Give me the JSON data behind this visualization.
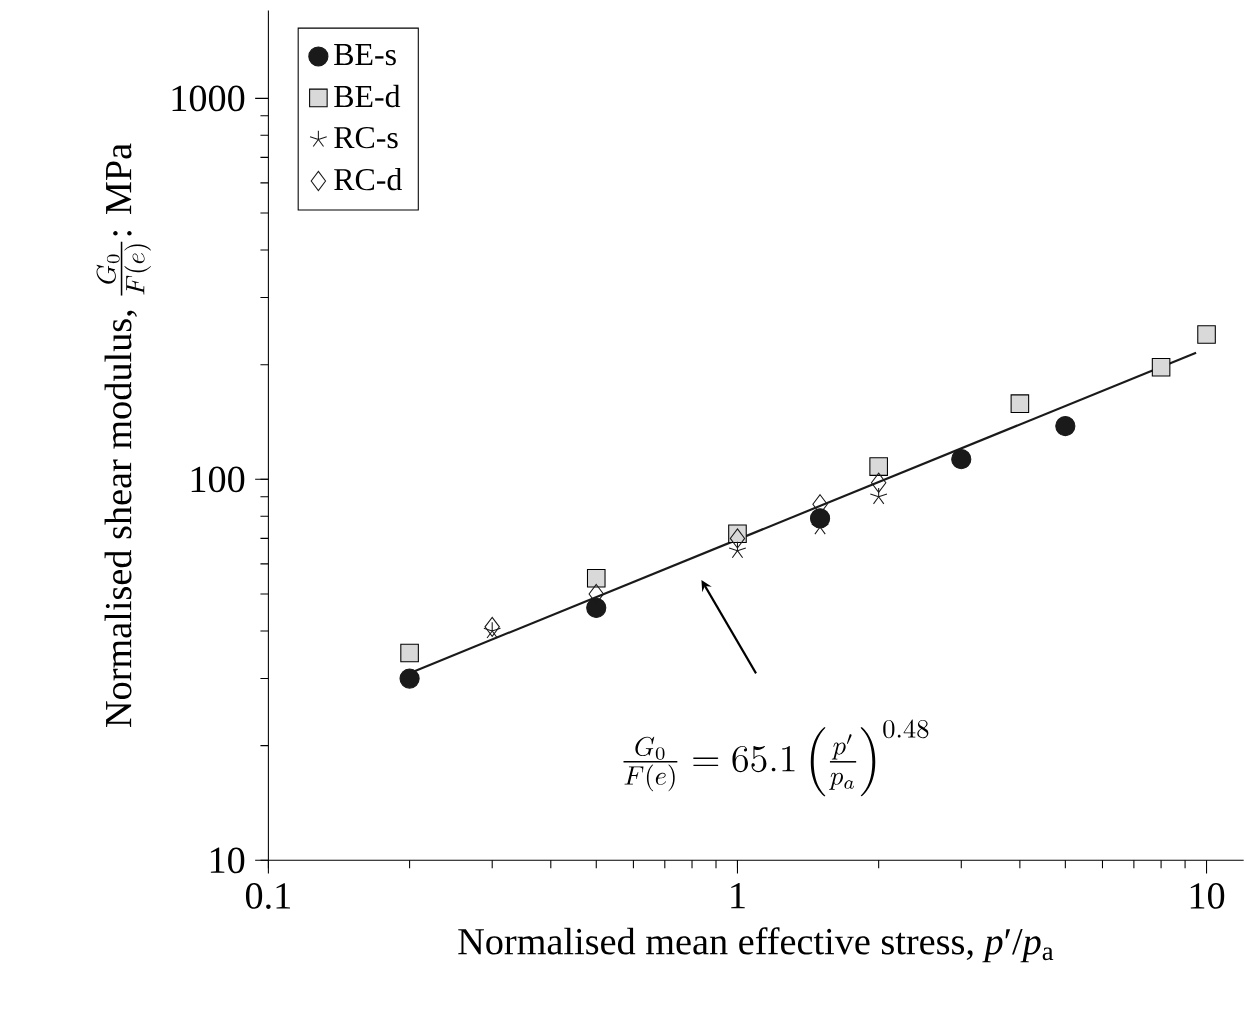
{
  "chart_data": {
    "type": "scatter",
    "xlabel": "Normalised mean effective stress, *p*′/*p*$_{a}$",
    "ylabel": "\\text{Normalised shear modulus, }\\frac{G_0}{F(e)}\\text{: MPa}",
    "log": "xy",
    "legend": "top left",
    "grid": false,
    "xlim": [
      0.1,
      12
    ],
    "ylim": [
      10,
      1700
    ],
    "xticks": [
      0.1,
      1,
      10
    ],
    "yticks": [
      10,
      100,
      1000
    ],
    "series": [
      {
        "name": "BE-s",
        "color": "#1a1a1a",
        "marker": "circle",
        "x": [
          0.2,
          0.5,
          1.5,
          3,
          5
        ],
        "values": [
          30,
          46,
          79,
          113,
          138
        ]
      },
      {
        "name": "BE-d",
        "color": "#d9d9d9",
        "marker": "square",
        "x": [
          0.2,
          0.5,
          1,
          2,
          4,
          8,
          10
        ],
        "values": [
          35,
          55,
          72,
          108,
          158,
          197,
          240
        ]
      },
      {
        "name": "RC-s",
        "color": "#1a1a1a",
        "marker": "cross",
        "x": [
          0.3,
          0.5,
          1,
          1.5,
          2
        ],
        "values": [
          40,
          null,
          65,
          75,
          90
        ]
      },
      {
        "name": "RC-d",
        "color": "#1a1a1a",
        "marker": "diamond",
        "x": [
          0.3,
          0.5,
          1,
          1.5,
          2
        ],
        "values": [
          41,
          50,
          70,
          86,
          98
        ]
      },
      {
        "type": "line",
        "color": "#1a1a1a",
        "marker": "none",
        "line_style": "solid",
        "x": [
          0.2,
          9.5
        ],
        "values": [
          31,
          215
        ]
      }
    ],
    "annotations": [
      "\\frac{G_0}{F(e)} = 65.1 \\left(\\frac{p'}{p_a}\\right)^{0.48}"
    ]
  }
}
